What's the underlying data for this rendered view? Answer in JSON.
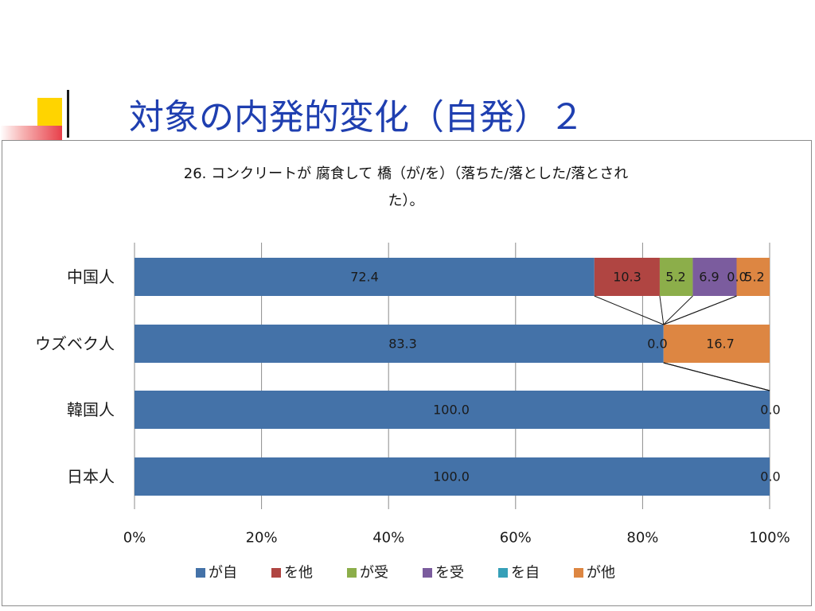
{
  "slide": {
    "title": "対象の内発的変化（自発）２"
  },
  "chart_data": {
    "type": "bar",
    "orientation": "horizontal",
    "stacked": "100%",
    "title_lines": [
      "26. コンクリートが 腐食して 橋（が/を）（落ちた/落とした/落とされ",
      "た）。"
    ],
    "categories": [
      "中国人",
      "ウズベク人",
      "韓国人",
      "日本人"
    ],
    "series": [
      {
        "name": "が自",
        "color": "#4472a8",
        "values": [
          72.4,
          83.3,
          100.0,
          100.0
        ]
      },
      {
        "name": "を他",
        "color": "#b04542",
        "values": [
          10.3,
          0,
          0,
          0
        ]
      },
      {
        "name": "が受",
        "color": "#8cae4a",
        "values": [
          5.2,
          0,
          0,
          0
        ]
      },
      {
        "name": "を受",
        "color": "#7b5c9e",
        "values": [
          6.9,
          0,
          0,
          0
        ]
      },
      {
        "name": "を自",
        "color": "#36a0b8",
        "values": [
          0,
          0,
          0,
          0
        ]
      },
      {
        "name": "が他",
        "color": "#dd8642",
        "values": [
          5.2,
          16.7,
          0,
          0
        ]
      }
    ],
    "data_labels": [
      [
        "72.4",
        "10.3",
        "5.2",
        "6.9",
        "0.0",
        "5.2"
      ],
      [
        "83.3",
        "0.0",
        "16.7"
      ],
      [
        "100.0",
        "0.0"
      ],
      [
        "100.0",
        "0.0"
      ]
    ],
    "xlim": [
      0,
      100
    ],
    "x_ticks": [
      "0%",
      "20%",
      "40%",
      "60%",
      "80%",
      "100%"
    ],
    "grid": "vertical",
    "legend": "bottom"
  }
}
